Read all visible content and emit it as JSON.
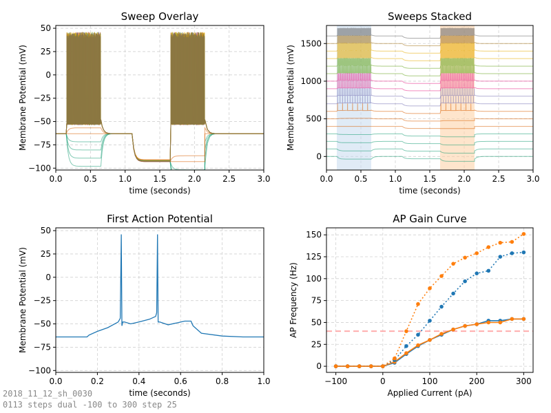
{
  "footer": {
    "line1": "2018_11_12_sh_0030",
    "line2": "0113 steps dual -100 to 300 step 25"
  },
  "colors": {
    "sweeps": [
      "#1b9e77",
      "#1b9e77",
      "#1b9e77",
      "#1b9e77",
      "#d95f02",
      "#d95f02",
      "#d95f02",
      "#7570b3",
      "#7570b3",
      "#e7298a",
      "#e7298a",
      "#66a61e",
      "#66a61e",
      "#e6ab02",
      "#e6ab02",
      "#a6761d",
      "#666666"
    ],
    "trace": "#1f77b4",
    "gain_a": "#1f77b4",
    "gain_b": "#ff7f0e",
    "threshold": "#ff9999",
    "shade_a": "#c6dbef",
    "shade_b": "#fdd0a2"
  },
  "chart_data": [
    {
      "id": "overlay",
      "type": "line",
      "title": "Sweep Overlay",
      "xlabel": "time (seconds)",
      "ylabel": "Membrane Potential (mV)",
      "xlim": [
        0,
        3.0
      ],
      "ylim": [
        -102,
        53
      ],
      "xticks": [
        0,
        0.5,
        1.0,
        1.5,
        2.0,
        2.5,
        3.0
      ],
      "xtick_labels": [
        "0.0",
        "0.5",
        "1.0",
        "1.5",
        "2.0",
        "2.5",
        "3.0"
      ],
      "yticks": [
        -100,
        -75,
        -50,
        -25,
        0,
        25,
        50
      ],
      "ytick_labels": [
        "−100",
        "−75",
        "−50",
        "−25",
        "0",
        "25",
        "50"
      ],
      "grid": true,
      "sweep_currents": [
        -100,
        -75,
        -50,
        -25,
        0,
        25,
        50,
        75,
        100,
        125,
        150,
        175,
        200,
        225,
        250,
        275,
        300
      ],
      "step1": [
        0.15,
        0.65
      ],
      "step2": [
        1.65,
        2.15
      ],
      "resting_mV": -63,
      "hyperpolarized_mV": -93,
      "spike_peak_mV": 46,
      "spike_trough_mV": -53
    },
    {
      "id": "stacked",
      "type": "line",
      "title": "Sweeps Stacked",
      "xlabel": "time (seconds)",
      "ylabel": "Membrane Potential (mV)",
      "xlim": [
        0,
        3.0
      ],
      "ylim": [
        -180,
        1740
      ],
      "xticks": [
        0,
        0.5,
        1.0,
        1.5,
        2.0,
        2.5,
        3.0
      ],
      "xtick_labels": [
        "0.0",
        "0.5",
        "1.0",
        "1.5",
        "2.0",
        "2.5",
        "3.0"
      ],
      "yticks": [
        0,
        500,
        1000,
        1500
      ],
      "ytick_labels": [
        "0",
        "500",
        "1000",
        "1500"
      ],
      "grid": true,
      "offset_per_sweep_mV": 100,
      "shaded_regions": [
        [
          0.15,
          0.65
        ],
        [
          1.65,
          2.15
        ]
      ]
    },
    {
      "id": "first_ap",
      "type": "line",
      "title": "First Action Potential",
      "xlabel": "time (seconds)",
      "ylabel": "Membrane Potential (mV)",
      "xlim": [
        0,
        1.0
      ],
      "ylim": [
        -102,
        53
      ],
      "xticks": [
        0,
        0.2,
        0.4,
        0.6,
        0.8,
        1.0
      ],
      "xtick_labels": [
        "0.0",
        "0.2",
        "0.4",
        "0.6",
        "0.8",
        "1.0"
      ],
      "yticks": [
        -100,
        -75,
        -50,
        -25,
        0,
        25,
        50
      ],
      "ytick_labels": [
        "−100",
        "−75",
        "−50",
        "−25",
        "0",
        "25",
        "50"
      ],
      "grid": true,
      "x": [
        0,
        0.15,
        0.16,
        0.2,
        0.25,
        0.3,
        0.31,
        0.315,
        0.318,
        0.322,
        0.33,
        0.36,
        0.4,
        0.45,
        0.48,
        0.485,
        0.489,
        0.492,
        0.5,
        0.54,
        0.58,
        0.62,
        0.65,
        0.66,
        0.7,
        0.8,
        0.9,
        1.0
      ],
      "y": [
        -64,
        -64,
        -62,
        -58,
        -54,
        -48,
        -44,
        46,
        -52,
        -48,
        -48,
        -50,
        -48,
        -45,
        -42,
        -38,
        46,
        -48,
        -48,
        -51,
        -49,
        -47,
        -47,
        -52,
        -60,
        -63,
        -64,
        -64
      ]
    },
    {
      "id": "gain",
      "type": "line",
      "title": "AP Gain Curve",
      "xlabel": "Applied Current (pA)",
      "ylabel": "AP Frequency (Hz)",
      "xlim": [
        -120,
        320
      ],
      "ylim": [
        -7,
        158
      ],
      "xticks": [
        -100,
        0,
        100,
        200,
        300
      ],
      "xtick_labels": [
        "−100",
        "0",
        "100",
        "200",
        "300"
      ],
      "yticks": [
        0,
        25,
        50,
        75,
        100,
        125,
        150
      ],
      "ytick_labels": [
        "0",
        "25",
        "50",
        "75",
        "100",
        "125",
        "150"
      ],
      "grid": true,
      "threshold_hz": 40,
      "x": [
        -100,
        -75,
        -50,
        -25,
        0,
        25,
        50,
        75,
        100,
        125,
        150,
        175,
        200,
        225,
        250,
        275,
        300
      ],
      "series": [
        {
          "values": [
            0,
            0,
            0,
            0,
            0,
            4,
            14,
            23,
            30,
            36,
            42,
            46,
            48,
            52,
            52,
            54,
            54
          ],
          "style": "solid",
          "color": "#1f77b4"
        },
        {
          "values": [
            0,
            0,
            0,
            0,
            0,
            5,
            15,
            24,
            30,
            37,
            42,
            46,
            48,
            50,
            50,
            54,
            54
          ],
          "style": "solid",
          "color": "#ff7f0e"
        },
        {
          "values": [
            0,
            0,
            0,
            0,
            0,
            7,
            23,
            36,
            52,
            68,
            83,
            97,
            106,
            109,
            125,
            129,
            130
          ],
          "style": "dotted",
          "color": "#1f77b4"
        },
        {
          "values": [
            0,
            0,
            0,
            0,
            0,
            9,
            40,
            71,
            89,
            103,
            117,
            124,
            129,
            136,
            141,
            142,
            151
          ],
          "style": "dotted",
          "color": "#ff7f0e"
        }
      ]
    }
  ]
}
